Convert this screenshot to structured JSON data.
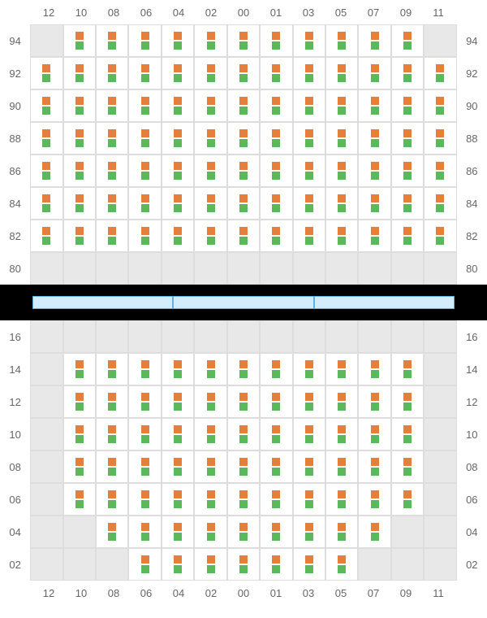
{
  "columns": [
    "12",
    "10",
    "08",
    "06",
    "04",
    "02",
    "00",
    "01",
    "03",
    "05",
    "07",
    "09",
    "11"
  ],
  "top_section": {
    "rows": [
      "94",
      "92",
      "90",
      "88",
      "86",
      "84",
      "82",
      "80"
    ],
    "empty_ranges": {
      "94": [
        "12",
        "11"
      ],
      "80": [
        "12",
        "10",
        "08",
        "06",
        "04",
        "02",
        "00",
        "01",
        "03",
        "05",
        "07",
        "09",
        "11"
      ]
    }
  },
  "bottom_section": {
    "rows": [
      "16",
      "14",
      "12",
      "10",
      "08",
      "06",
      "04",
      "02"
    ],
    "empty_ranges": {
      "16": [
        "12",
        "10",
        "08",
        "06",
        "04",
        "02",
        "00",
        "01",
        "03",
        "05",
        "07",
        "09",
        "11"
      ],
      "14": [
        "12",
        "11"
      ],
      "12": [
        "12",
        "11"
      ],
      "10": [
        "12",
        "11"
      ],
      "08": [
        "12",
        "11"
      ],
      "06": [
        "12",
        "11"
      ],
      "04": [
        "12",
        "10",
        "09",
        "11"
      ],
      "02": [
        "12",
        "10",
        "08",
        "07",
        "09",
        "11"
      ]
    }
  },
  "colors": {
    "led_top": "#e67e3c",
    "led_bottom": "#5cb85c",
    "empty_bg": "#e8e8e8",
    "sep_bg": "#000000",
    "sep_fill": "#d4edfc",
    "sep_border": "#5bb3e8"
  },
  "separator_segments": 3
}
